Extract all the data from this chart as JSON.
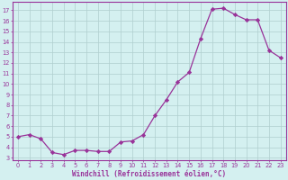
{
  "x": [
    0,
    1,
    2,
    3,
    4,
    5,
    6,
    7,
    8,
    9,
    10,
    11,
    12,
    13,
    14,
    15,
    16,
    17,
    18,
    19,
    20,
    21,
    22,
    23
  ],
  "y": [
    5.0,
    5.2,
    4.8,
    3.5,
    3.3,
    3.7,
    3.7,
    3.6,
    3.6,
    4.5,
    4.6,
    5.2,
    7.0,
    8.5,
    10.2,
    11.1,
    14.3,
    17.1,
    17.2,
    16.6,
    16.1,
    16.1,
    13.2,
    12.5
  ],
  "line_color": "#993399",
  "marker_color": "#993399",
  "bg_color": "#d4f0f0",
  "grid_color": "#b0cece",
  "xlabel": "Windchill (Refroidissement éolien,°C)",
  "ylabel_values": [
    3,
    4,
    5,
    6,
    7,
    8,
    9,
    10,
    11,
    12,
    13,
    14,
    15,
    16,
    17
  ],
  "ylim": [
    2.8,
    17.8
  ],
  "xlim": [
    -0.5,
    23.5
  ],
  "tick_fontsize": 4.8,
  "xlabel_fontsize": 5.5
}
